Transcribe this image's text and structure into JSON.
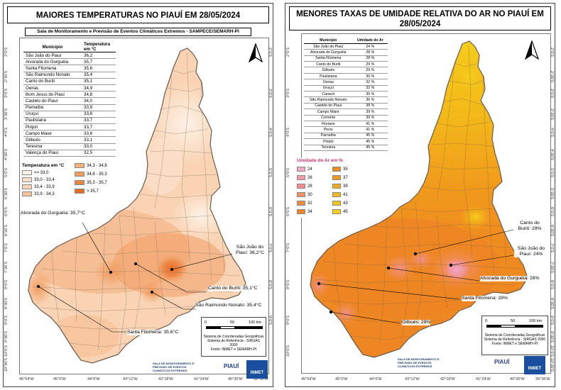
{
  "left": {
    "title": "MAIORES TEMPERATURAS NO PIAUÍ EM 28/05/2024",
    "subtitle": "Sala de Monitoramento e Previsão de Eventos Climáticos Extremos - SAMPECE/SEMARH-PI",
    "table": {
      "headers": [
        "Município",
        "Temperatura em °C"
      ],
      "rows": [
        [
          "São João do Piauí",
          "36,2"
        ],
        [
          "Alvorada do Gurguéia",
          "35,7"
        ],
        [
          "Santa Filomena",
          "35,6"
        ],
        [
          "São Raimundo Nonato",
          "35,4"
        ],
        [
          "Canto do Buriti",
          "35,1"
        ],
        [
          "Oeiras",
          "34,9"
        ],
        [
          "Bom Jesus do Piauí",
          "34,8"
        ],
        [
          "Castelo do Piauí",
          "34,0"
        ],
        [
          "Parnaíba",
          "33,9"
        ],
        [
          "Uruçuí",
          "33,8"
        ],
        [
          "Paulistana",
          "33,7"
        ],
        [
          "Piripiri",
          "33,7"
        ],
        [
          "Campo Maior",
          "33,6"
        ],
        [
          "Gilbués",
          "33,1"
        ],
        [
          "Teresina",
          "33,0"
        ],
        [
          "Valença do Piauí",
          "32,5"
        ]
      ]
    },
    "legend": {
      "title": "Temperatura em °C",
      "items": [
        {
          "label": "<= 33,0",
          "color": "#fdf1e6"
        },
        {
          "label": "33,0 - 33,4",
          "color": "#fbe1cc"
        },
        {
          "label": "33,4 - 33,9",
          "color": "#f9d3b3"
        },
        {
          "label": "33,9 - 34,3",
          "color": "#f7c39a"
        },
        {
          "label": "34,3 - 34,8",
          "color": "#f4b17e"
        },
        {
          "label": "34,8 - 35,3",
          "color": "#f19c5f"
        },
        {
          "label": "35,3 - 35,7",
          "color": "#ec8442"
        },
        {
          "label": "> 35,7",
          "color": "#e46a25"
        }
      ]
    },
    "callouts": [
      {
        "id": "alvorada",
        "text": "Alvorada do Gurguéia: 35,7°C"
      },
      {
        "id": "sao-joao",
        "text": "São João do Piauí: 36,2°C"
      },
      {
        "id": "canto",
        "text": "Canto do Buriti: 35,1°C"
      },
      {
        "id": "sao-raimundo",
        "text": "São Raimundo Nonato: 35,4°C"
      },
      {
        "id": "santa-filomena",
        "text": "Santa Filomena: 35,6°C"
      }
    ],
    "coords_lat": [
      "2°0'S",
      "2°30'S",
      "3°0'S",
      "3°30'S",
      "4°0'S",
      "4°30'S",
      "5°0'S",
      "5°30'S",
      "6°0'S",
      "6°30'S",
      "7°0'S",
      "7°30'S",
      "8°0'S",
      "8°30'S",
      "9°0'S",
      "9°30'S",
      "10°0'S",
      "10°30'S"
    ],
    "coords_lon": [
      "45°54'W",
      "45°0'W",
      "44°6'W",
      "43°12'W",
      "42°18'W",
      "41°24'W",
      "40°30'W",
      "39°36'W"
    ]
  },
  "right": {
    "title": "MENORES TAXAS DE UMIDADE RELATIVA DO AR NO PIAUÍ EM 28/05/2024",
    "table": {
      "headers": [
        "Município",
        "Umidade do Ar"
      ],
      "rows": [
        [
          "São João do Piauí",
          "24 %"
        ],
        [
          "Alvorada do Gurguéia",
          "28 %"
        ],
        [
          "Santa Filomena",
          "28 %"
        ],
        [
          "Canto do Buriti",
          "29 %"
        ],
        [
          "Gilbués",
          "29 %"
        ],
        [
          "Paulistana",
          "30 %"
        ],
        [
          "Oeiras",
          "32 %"
        ],
        [
          "Uruçuí",
          "32 %"
        ],
        [
          "Caracol",
          "36 %"
        ],
        [
          "São Raimundo Nonato",
          "36 %"
        ],
        [
          "Castelo do Piauí",
          "38 %"
        ],
        [
          "Campo Maior",
          "39 %"
        ],
        [
          "Corrente",
          "39 %"
        ],
        [
          "Floriano",
          "41 %"
        ],
        [
          "Picos",
          "41 %"
        ],
        [
          "Parnaíba",
          "45 %"
        ],
        [
          "Piripiri",
          "45 %"
        ],
        [
          "Teresina",
          "45 %"
        ]
      ]
    },
    "legend": {
      "title": "Umidade do Ar em %",
      "items": [
        {
          "label": "24",
          "color": "#f4a6c6"
        },
        {
          "label": "26",
          "color": "#f29ab0"
        },
        {
          "label": "28",
          "color": "#f28e8a"
        },
        {
          "label": "30",
          "color": "#f19165"
        },
        {
          "label": "32",
          "color": "#ef8a3a"
        },
        {
          "label": "34",
          "color": "#ee8424"
        },
        {
          "label": "35",
          "color": "#ef8c1f"
        },
        {
          "label": "37",
          "color": "#f09a1c"
        },
        {
          "label": "39",
          "color": "#f2a91a"
        },
        {
          "label": "41",
          "color": "#f3b719"
        },
        {
          "label": "43",
          "color": "#f4c418"
        },
        {
          "label": "45",
          "color": "#f5cf1a"
        }
      ]
    },
    "callouts": [
      {
        "id": "canto",
        "text": "Canto do Buriti: 29%"
      },
      {
        "id": "sao-joao",
        "text": "São João do Piauí: 24%"
      },
      {
        "id": "alvorada",
        "text": "Alvorada do Gurguéia: 28%"
      },
      {
        "id": "santa-filomena",
        "text": "Santa Filomena: 28%"
      },
      {
        "id": "gilbues",
        "text": "Gilbués: 29%"
      }
    ],
    "coords_lat": [
      "2°0'S",
      "2°30'S",
      "3°0'S",
      "3°30'S",
      "4°0'S",
      "4°30'S",
      "5°0'S",
      "5°30'S",
      "6°0'S",
      "6°30'S",
      "7°0'S",
      "7°30'S",
      "8°0'S",
      "8°30'S",
      "9°0'S",
      "9°30'S",
      "10°0'S",
      "10°30'S"
    ],
    "coords_lon": [
      "45°54'W",
      "45°0'W",
      "44°6'W",
      "43°12'W",
      "42°18'W",
      "41°24'W",
      "40°30'W",
      "39°36'W"
    ]
  },
  "scale": {
    "ticks": [
      "0",
      "50",
      "100 km"
    ],
    "info": [
      "Sistema de Coordenadas Geográficas",
      "Sistema de Referência - SIRGAS 2000",
      "Fonte: INMET e SEMARH-PI"
    ]
  },
  "footer": {
    "sala": [
      "SALA DE MONITORAMENTO E",
      "PREVISÃO DE EVENTOS",
      "CLIMÁTICOS EXTREMOS"
    ],
    "piaui": "PIAUÍ",
    "inmet": "INMET"
  },
  "colors": {
    "temp_state_base": "#f9d3b3",
    "humidity_state_base": "#ee8a2a",
    "boundary": "#6b5a4a"
  }
}
